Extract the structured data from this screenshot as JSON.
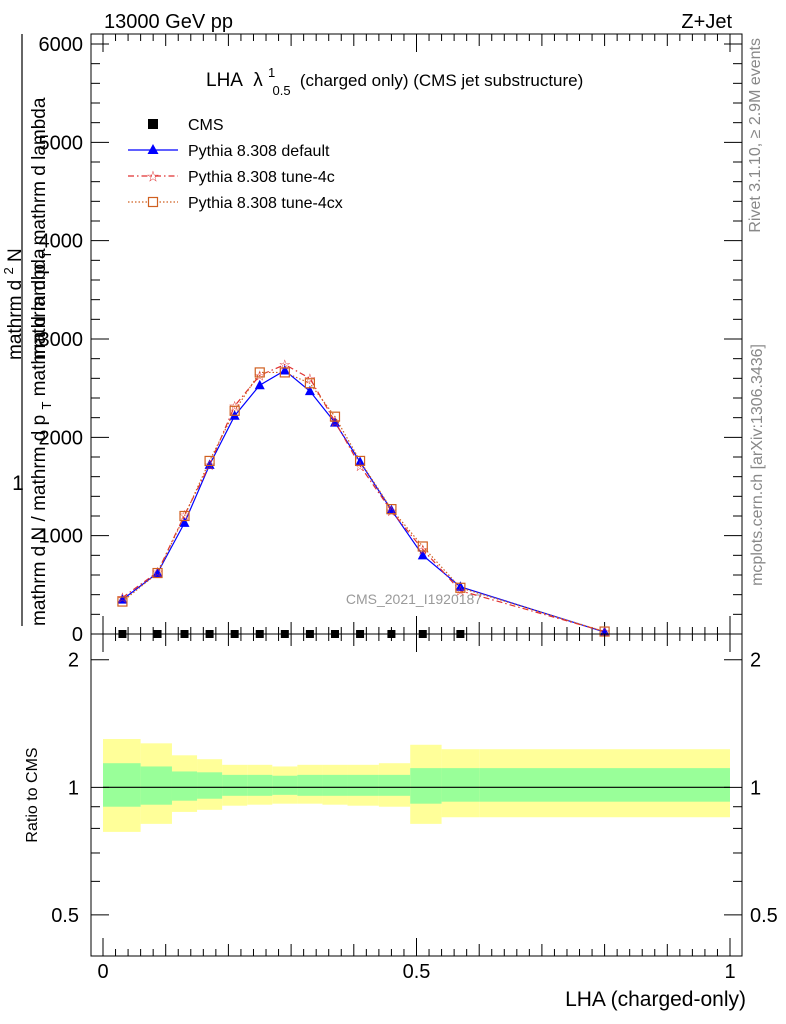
{
  "header": {
    "left": "13000 GeV pp",
    "right": "Z+Jet"
  },
  "title": {
    "main": "LHA",
    "lambda": "λ",
    "sup": "1",
    "sub": "0.5",
    "rest": "(charged only) (CMS jet substructure)"
  },
  "side_text": {
    "rivet": "Rivet 3.1.10, ≥ 2.9M events",
    "mcplots": "mcplots.cern.ch [arXiv:1306.3436]"
  },
  "watermark": "CMS_2021_I1920187",
  "top_ylabel": {
    "line1": "1",
    "line2": "mathrm d N / mathrm d p",
    "line2_sub": "T",
    "line2_rest": "mathrm d lambda",
    "line3": "mathrm d",
    "line3_sup": "2",
    "line3_rest": "N",
    "line4": "mathrm d p",
    "line4_sub": "T",
    "line4_rest": "mathrm d lambda"
  },
  "top_yticks": [
    "0",
    "1000",
    "2000",
    "3000",
    "4000",
    "5000",
    "6000"
  ],
  "bottom_ylabel": "Ratio to CMS",
  "bottom_yticks": [
    "0.5",
    "1",
    "2"
  ],
  "xticks": [
    "0",
    "0.5",
    "1"
  ],
  "xlabel": "LHA (charged-only)",
  "legend": [
    {
      "label": "CMS",
      "color": "#000000",
      "marker": "square"
    },
    {
      "label": "Pythia 8.308 default",
      "color": "#0000ff",
      "marker": "triangle"
    },
    {
      "label": "Pythia 8.308 tune-4c",
      "color": "#e03030",
      "marker": "star"
    },
    {
      "label": "Pythia 8.308 tune-4cx",
      "color": "#d06020",
      "marker": "opensquare"
    }
  ],
  "chart_data": {
    "type": "line",
    "xlim": [
      0,
      1
    ],
    "ylim": [
      0,
      6000
    ],
    "ratio_ylim": [
      0.4,
      2.3
    ],
    "ratio_scale": "log",
    "x": [
      0.031,
      0.087,
      0.13,
      0.17,
      0.21,
      0.25,
      0.29,
      0.33,
      0.37,
      0.41,
      0.46,
      0.51,
      0.57,
      0.8
    ],
    "cms": [
      0,
      0,
      0,
      0,
      0,
      0,
      0,
      0,
      0,
      0,
      0,
      0,
      0,
      0
    ],
    "series": [
      {
        "name": "Pythia 8.308 default",
        "values": [
          350,
          620,
          1130,
          1720,
          2220,
          2530,
          2680,
          2470,
          2150,
          1750,
          1260,
          800,
          480,
          20
        ]
      },
      {
        "name": "Pythia 8.308 tune-4c",
        "values": [
          370,
          630,
          1210,
          1720,
          2320,
          2630,
          2740,
          2600,
          2160,
          1710,
          1250,
          860,
          440,
          25
        ]
      },
      {
        "name": "Pythia 8.308 tune-4cx",
        "values": [
          330,
          620,
          1200,
          1760,
          2270,
          2660,
          2660,
          2550,
          2210,
          1760,
          1270,
          890,
          470,
          25
        ]
      }
    ],
    "ratio_bands": {
      "edges": [
        0.0,
        0.06,
        0.11,
        0.15,
        0.19,
        0.23,
        0.27,
        0.31,
        0.35,
        0.39,
        0.44,
        0.49,
        0.54,
        0.6,
        1.0
      ],
      "inner_lo": [
        0.9,
        0.91,
        0.93,
        0.94,
        0.955,
        0.955,
        0.96,
        0.955,
        0.955,
        0.955,
        0.955,
        0.915,
        0.925,
        0.925
      ],
      "inner_hi": [
        1.14,
        1.12,
        1.09,
        1.085,
        1.07,
        1.07,
        1.065,
        1.07,
        1.07,
        1.07,
        1.07,
        1.11,
        1.11,
        1.11
      ],
      "outer_lo": [
        0.785,
        0.82,
        0.875,
        0.885,
        0.905,
        0.91,
        0.915,
        0.915,
        0.91,
        0.905,
        0.9,
        0.82,
        0.85,
        0.85
      ],
      "outer_hi": [
        1.3,
        1.27,
        1.19,
        1.165,
        1.13,
        1.13,
        1.12,
        1.13,
        1.13,
        1.13,
        1.14,
        1.26,
        1.23,
        1.23
      ]
    }
  }
}
